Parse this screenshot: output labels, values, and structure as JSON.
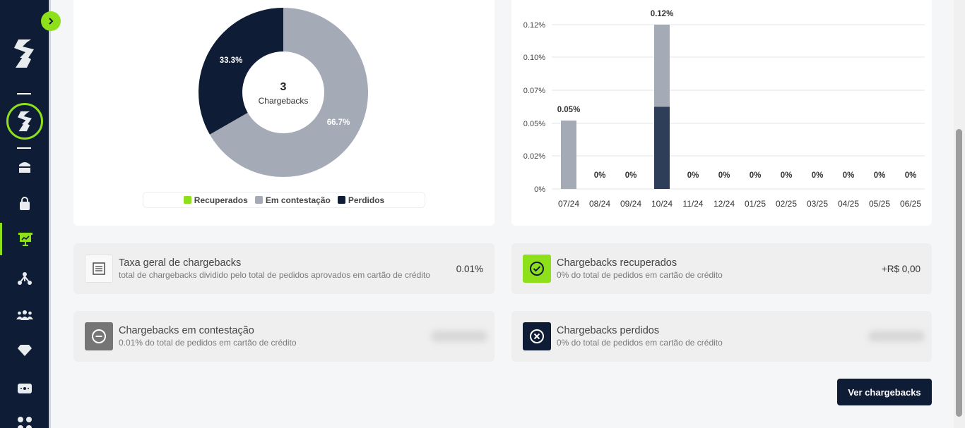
{
  "donut": {
    "center_value": "3",
    "center_label": "Chargebacks",
    "slices": [
      {
        "label": "66.7%",
        "value": 66.7,
        "color": "#a4aab6"
      },
      {
        "label": "33.3%",
        "value": 33.3,
        "color": "#0f1c36"
      }
    ],
    "legend": [
      {
        "label": "Recuperados",
        "color": "#8ee01a"
      },
      {
        "label": "Em contestação",
        "color": "#a4aab6"
      },
      {
        "label": "Perdidos",
        "color": "#0f1c36"
      }
    ]
  },
  "chart_data": {
    "type": "bar",
    "categories": [
      "07/24",
      "08/24",
      "09/24",
      "10/24",
      "11/24",
      "12/24",
      "01/25",
      "02/25",
      "03/25",
      "04/25",
      "05/25",
      "06/25"
    ],
    "series": [
      {
        "values": [
          0.0,
          0,
          0,
          0.06,
          0,
          0,
          0,
          0,
          0,
          0,
          0,
          0
        ],
        "color": "#2e3d58"
      },
      {
        "values": [
          0.05,
          0,
          0,
          0.06,
          0,
          0,
          0,
          0,
          0,
          0,
          0,
          0
        ],
        "color": "#a4aab6"
      }
    ],
    "data_labels": [
      "0.05%",
      "0%",
      "0%",
      "0.12%",
      "0%",
      "0%",
      "0%",
      "0%",
      "0%",
      "0%",
      "0%",
      "0%"
    ],
    "yticks": [
      "0%",
      "0.02%",
      "0.05%",
      "0.07%",
      "0.10%",
      "0.12%"
    ],
    "ylim": [
      0,
      0.12
    ],
    "stacked": true,
    "grid": true
  },
  "stats": {
    "taxa": {
      "title": "Taxa geral de chargebacks",
      "subtitle": "total de chargebacks dividido pelo total de pedidos aprovados em cartão de crédito",
      "value": "0.01%"
    },
    "recuperados": {
      "title": "Chargebacks recuperados",
      "subtitle": "0% do total de pedidos em cartão de crédito",
      "value": "+R$ 0,00"
    },
    "contestacao": {
      "title": "Chargebacks em contestação",
      "subtitle": "0.01% do total de pedidos em cartão de crédito"
    },
    "perdidos": {
      "title": "Chargebacks perdidos",
      "subtitle": "0% do total de pedidos em cartão de crédito"
    }
  },
  "actions": {
    "ver_chargebacks": "Ver chargebacks"
  },
  "colors": {
    "accent": "#8ee01a",
    "navy": "#0f1c36",
    "gray": "#a4aab6"
  }
}
